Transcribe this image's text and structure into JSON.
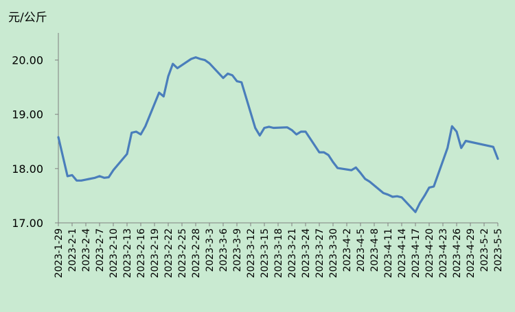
{
  "chart_data": {
    "type": "line",
    "title": "",
    "ylabel": "元/公斤",
    "xlabel": "",
    "ylim": [
      17.0,
      20.5
    ],
    "yticks": [
      "17.00",
      "18.00",
      "19.00",
      "20.00"
    ],
    "grid": false,
    "legend": "none",
    "line_color": "#4a7ebb",
    "background_color": "#c9ead1",
    "x_tick_labels": [
      "2023-1-29",
      "2023-2-1",
      "2023-2-4",
      "2023-2-7",
      "2023-2-10",
      "2023-2-13",
      "2023-2-16",
      "2023-2-19",
      "2023-2-22",
      "2023-2-25",
      "2023-2-28",
      "2023-3-3",
      "2023-3-6",
      "2023-3-9",
      "2023-3-12",
      "2023-3-15",
      "2023-3-18",
      "2023-3-21",
      "2023-3-24",
      "2023-3-27",
      "2023-3-30",
      "2023-4-2",
      "2023-4-5",
      "2023-4-8",
      "2023-4-11",
      "2023-4-14",
      "2023-4-17",
      "2023-4-20",
      "2023-4-23",
      "2023-4-26",
      "2023-4-29",
      "2023-5-2",
      "2023-5-5"
    ],
    "series": [
      {
        "x": [
          "2023-1-29",
          "2023-1-31",
          "2023-2-1",
          "2023-2-2",
          "2023-2-3",
          "2023-2-6",
          "2023-2-7",
          "2023-2-8",
          "2023-2-9",
          "2023-2-10",
          "2023-2-13",
          "2023-2-14",
          "2023-2-15",
          "2023-2-16",
          "2023-2-17",
          "2023-2-20",
          "2023-2-21",
          "2023-2-22",
          "2023-2-23",
          "2023-2-24",
          "2023-2-27",
          "2023-2-28",
          "2023-3-1",
          "2023-3-2",
          "2023-3-3",
          "2023-3-6",
          "2023-3-7",
          "2023-3-8",
          "2023-3-9",
          "2023-3-10",
          "2023-3-13",
          "2023-3-14",
          "2023-3-15",
          "2023-3-16",
          "2023-3-17",
          "2023-3-20",
          "2023-3-21",
          "2023-3-22",
          "2023-3-23",
          "2023-3-24",
          "2023-3-27",
          "2023-3-28",
          "2023-3-29",
          "2023-3-30",
          "2023-3-31",
          "2023-4-3",
          "2023-4-4",
          "2023-4-5",
          "2023-4-6",
          "2023-4-7",
          "2023-4-10",
          "2023-4-11",
          "2023-4-12",
          "2023-4-13",
          "2023-4-14",
          "2023-4-17",
          "2023-4-18",
          "2023-4-19",
          "2023-4-20",
          "2023-4-21",
          "2023-4-24",
          "2023-4-25",
          "2023-4-26",
          "2023-4-27",
          "2023-4-28",
          "2023-5-4",
          "2023-5-5"
        ],
        "values": [
          18.58,
          17.86,
          17.88,
          17.78,
          17.78,
          17.83,
          17.86,
          17.83,
          17.84,
          17.97,
          18.27,
          18.66,
          18.68,
          18.63,
          18.78,
          19.4,
          19.33,
          19.7,
          19.93,
          19.85,
          20.02,
          20.05,
          20.02,
          20.0,
          19.94,
          19.67,
          19.75,
          19.72,
          19.61,
          19.59,
          18.75,
          18.61,
          18.75,
          18.77,
          18.75,
          18.76,
          18.71,
          18.63,
          18.68,
          18.68,
          18.3,
          18.3,
          18.25,
          18.12,
          18.01,
          17.97,
          18.02,
          17.92,
          17.81,
          17.76,
          17.55,
          17.52,
          17.48,
          17.49,
          17.47,
          17.2,
          17.37,
          17.5,
          17.65,
          17.67,
          18.38,
          18.78,
          18.68,
          18.38,
          18.51,
          18.4,
          18.18
        ]
      }
    ]
  }
}
